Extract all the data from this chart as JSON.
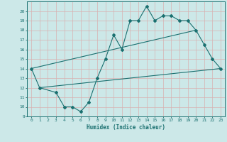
{
  "title": "",
  "xlabel": "Humidex (Indice chaleur)",
  "xlim": [
    -0.5,
    23.5
  ],
  "ylim": [
    9,
    21
  ],
  "yticks": [
    9,
    10,
    11,
    12,
    13,
    14,
    15,
    16,
    17,
    18,
    19,
    20
  ],
  "xticks": [
    0,
    1,
    2,
    3,
    4,
    5,
    6,
    7,
    8,
    9,
    10,
    11,
    12,
    13,
    14,
    15,
    16,
    17,
    18,
    19,
    20,
    21,
    22,
    23
  ],
  "bg_color": "#cce8e8",
  "grid_color": "#aad0d0",
  "line_color": "#1a7070",
  "line1_x": [
    0,
    1,
    3,
    4,
    5,
    6,
    7,
    8,
    9,
    10,
    11,
    12,
    13,
    14,
    15,
    16,
    17,
    18,
    19,
    20,
    21,
    22,
    23
  ],
  "line1_y": [
    14,
    12,
    11.5,
    10,
    10,
    9.5,
    10.5,
    13,
    15,
    17.5,
    16,
    19,
    19,
    20.5,
    19,
    19.5,
    19.5,
    19,
    19,
    18,
    16.5,
    15,
    14
  ],
  "line2_x": [
    0,
    20
  ],
  "line2_y": [
    14,
    18
  ],
  "line3_x": [
    1,
    23
  ],
  "line3_y": [
    12,
    14
  ]
}
